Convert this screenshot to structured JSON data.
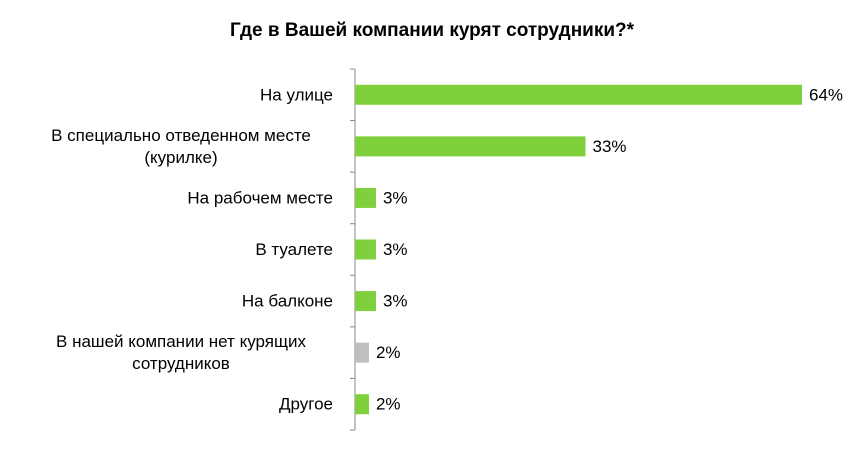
{
  "chart_data": {
    "type": "bar",
    "orientation": "horizontal",
    "title": "Где в Вашей компании курят сотрудники?*",
    "categories": [
      [
        "На улице"
      ],
      [
        "В специально отведенном месте",
        "(курилке)"
      ],
      [
        "На рабочем месте"
      ],
      [
        "В туалете"
      ],
      [
        "На балконе"
      ],
      [
        "В нашей компании  нет курящих",
        "сотрудников"
      ],
      [
        "Другое"
      ]
    ],
    "values": [
      64,
      33,
      3,
      3,
      3,
      2,
      2
    ],
    "value_labels": [
      "64%",
      "33%",
      "3%",
      "3%",
      "3%",
      "2%",
      "2%"
    ],
    "colors": [
      "#7ed13c",
      "#7ed13c",
      "#7ed13c",
      "#7ed13c",
      "#7ed13c",
      "#bfbfbf",
      "#7ed13c"
    ]
  }
}
